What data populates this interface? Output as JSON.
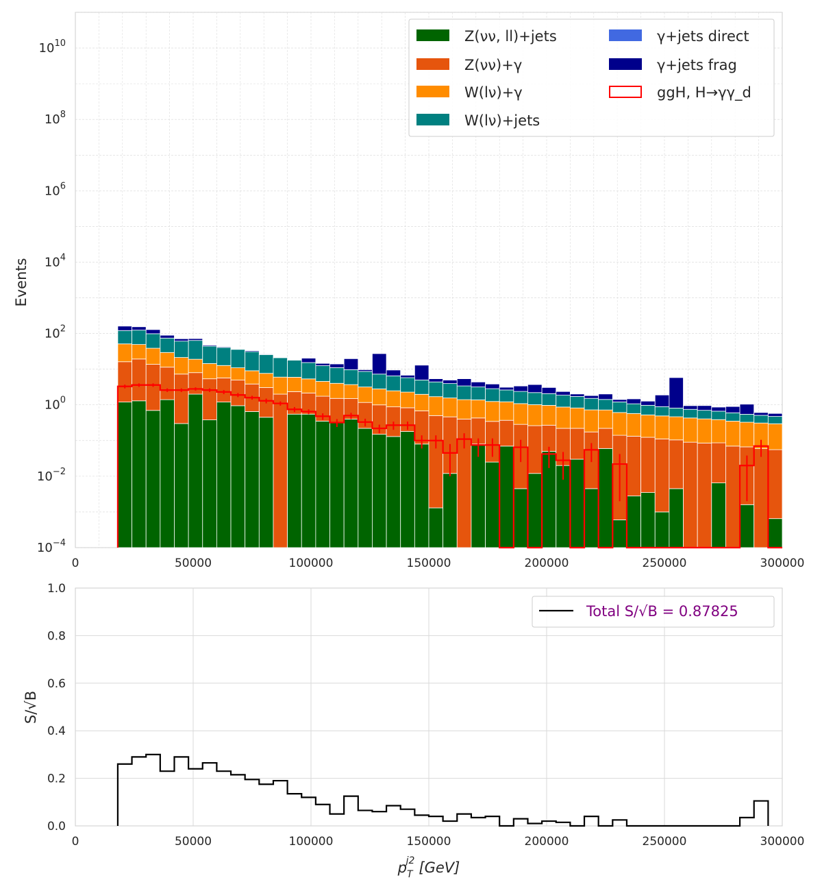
{
  "colors": {
    "z_jets": "#006400",
    "z_gamma": "#E6550D",
    "w_gamma": "#FF8C00",
    "w_jets": "#008080",
    "gj_direct": "#4169E1",
    "gj_frag": "#00008B",
    "signal": "#FF0000",
    "ratio": "#000000",
    "legend_text_ratio": "#800080"
  },
  "chart_data": [
    {
      "type": "bar",
      "stacked": true,
      "log_y": true,
      "ylabel": "Events",
      "xlim": [
        0,
        300000
      ],
      "ylim": [
        0.0001,
        100000000000
      ],
      "x_ticks": [
        "0",
        "50000",
        "100000",
        "150000",
        "200000",
        "250000",
        "300000"
      ],
      "y_ticks": [
        "10^-4",
        "10^-2",
        "10^0",
        "10^2",
        "10^4",
        "10^6",
        "10^8",
        "10^10"
      ],
      "grid": true,
      "legend_position": "top-right",
      "bin_edges": [
        18000,
        24000,
        30000,
        36000,
        42000,
        48000,
        54000,
        60000,
        66000,
        72000,
        78000,
        84000,
        90000,
        96000,
        102000,
        108000,
        114000,
        120000,
        126000,
        132000,
        138000,
        144000,
        150000,
        156000,
        162000,
        168000,
        174000,
        180000,
        186000,
        192000,
        198000,
        204000,
        210000,
        216000,
        222000,
        228000,
        234000,
        240000,
        246000,
        252000,
        258000,
        264000,
        270000,
        276000,
        282000,
        288000,
        294000,
        300000
      ],
      "series": [
        {
          "name": "Z(νν, ll)+jets",
          "key": "z_jets",
          "values": [
            1.2,
            1.3,
            0.7,
            1.4,
            0.3,
            2.0,
            0.38,
            1.2,
            0.95,
            0.65,
            0.45,
            0.0001,
            0.55,
            0.55,
            0.35,
            0.32,
            0.4,
            0.22,
            0.15,
            0.13,
            0.18,
            0.08,
            0.0013,
            0.012,
            0.0001,
            0.08,
            0.025,
            0.07,
            0.0045,
            0.012,
            0.05,
            0.02,
            0.03,
            0.0045,
            0.06,
            0.0006,
            0.0028,
            0.0035,
            0.001,
            0.0045,
            0.0001,
            0.0001,
            0.0065,
            0.0001,
            0.0016,
            0.0001,
            0.00065
          ]
        },
        {
          "name": "Z(νν)+γ",
          "key": "z_gamma",
          "values": [
            15,
            18,
            13,
            10,
            7,
            6,
            5,
            4.5,
            4,
            3.2,
            2.6,
            2,
            1.8,
            1.6,
            1.4,
            1.2,
            1.1,
            0.95,
            0.85,
            0.75,
            0.65,
            0.6,
            0.5,
            0.45,
            0.4,
            0.35,
            0.32,
            0.3,
            0.28,
            0.25,
            0.22,
            0.2,
            0.19,
            0.17,
            0.16,
            0.14,
            0.13,
            0.12,
            0.11,
            0.1,
            0.09,
            0.085,
            0.08,
            0.07,
            0.065,
            0.06,
            0.055
          ]
        },
        {
          "name": "W(lν)+γ",
          "key": "w_gamma",
          "values": [
            35,
            30,
            25,
            18,
            14,
            11,
            9,
            7,
            6,
            5.2,
            4.6,
            4,
            3.6,
            3.2,
            2.8,
            2.5,
            2.2,
            2,
            1.8,
            1.6,
            1.45,
            1.3,
            1.2,
            1.1,
            1,
            0.95,
            0.9,
            0.85,
            0.8,
            0.75,
            0.7,
            0.65,
            0.6,
            0.55,
            0.5,
            0.47,
            0.44,
            0.4,
            0.38,
            0.36,
            0.34,
            0.32,
            0.3,
            0.28,
            0.26,
            0.25,
            0.24
          ]
        },
        {
          "name": "W(lν)+jets",
          "key": "w_jets",
          "values": [
            70,
            75,
            60,
            45,
            40,
            45,
            30,
            28,
            25,
            22,
            18,
            15,
            12,
            10,
            8,
            7,
            6,
            5.5,
            4.5,
            4,
            3.5,
            3,
            2.7,
            2.4,
            2,
            1.8,
            1.6,
            1.4,
            1.3,
            1.2,
            1.1,
            1,
            0.9,
            0.8,
            0.7,
            0.6,
            0.5,
            0.45,
            0.4,
            0.35,
            0.32,
            0.3,
            0.28,
            0.25,
            0.22,
            0.2,
            0.18
          ]
        },
        {
          "name": "γ+jets direct",
          "key": "gj_direct",
          "values": [
            0,
            0,
            0,
            0,
            0,
            0,
            0,
            0,
            0,
            0,
            0,
            0,
            0,
            0,
            0,
            0,
            0,
            0,
            0,
            0,
            0,
            0,
            0,
            0,
            0,
            0,
            0,
            0,
            0,
            0,
            0,
            0,
            0,
            0,
            0,
            0,
            0,
            0,
            0,
            0,
            0,
            0,
            0,
            0,
            0,
            0,
            0
          ]
        },
        {
          "name": "γ+jets frag",
          "key": "gj_frag",
          "values": [
            40,
            30,
            30,
            15,
            10,
            8,
            3,
            2,
            1,
            2,
            1,
            0.5,
            0.5,
            5,
            2,
            3,
            10,
            1,
            20,
            3,
            1,
            8,
            1,
            1,
            2,
            1.2,
            1,
            0.5,
            1,
            1.5,
            1,
            0.5,
            0.3,
            0.3,
            0.6,
            0.2,
            0.4,
            0.3,
            1,
            5,
            0.2,
            0.25,
            0.2,
            0.3,
            0.5,
            0.1,
            0.1
          ]
        }
      ],
      "signal": {
        "name": "ggH, H→γγ_d",
        "key": "signal",
        "values": [
          3.3,
          3.6,
          3.6,
          2.6,
          2.6,
          2.8,
          2.6,
          2.3,
          1.9,
          1.6,
          1.3,
          1.1,
          0.75,
          0.65,
          0.48,
          0.32,
          0.5,
          0.33,
          0.22,
          0.27,
          0.27,
          0.1,
          0.1,
          0.045,
          0.11,
          0.075,
          0.075,
          0.0001,
          0.065,
          0.0001,
          0.042,
          0.028,
          0.0001,
          0.055,
          0.0001,
          0.022,
          0.0001,
          0.0001,
          0.0001,
          0.0001,
          0.0001,
          0.0001,
          0.0001,
          0.0001,
          0.02,
          0.07,
          0.0001
        ],
        "errors": [
          0.4,
          0.4,
          0.4,
          0.3,
          0.3,
          0.3,
          0.3,
          0.3,
          0.25,
          0.2,
          0.2,
          0.15,
          0.12,
          0.1,
          0.1,
          0.08,
          0.1,
          0.08,
          0.06,
          0.07,
          0.07,
          0.04,
          0.04,
          0.035,
          0.05,
          0.04,
          0.04,
          0,
          0.04,
          0,
          0.025,
          0.02,
          0,
          0.03,
          0,
          0.02,
          0,
          0,
          0,
          0,
          0,
          0,
          0,
          0,
          0.018,
          0.035,
          0
        ]
      }
    },
    {
      "type": "line",
      "step": true,
      "ylabel": "S/√B",
      "xlabel_main": "p",
      "xlabel_sub": "T",
      "xlabel_sup": "j2",
      "xlabel_unit": "[GeV]",
      "xlim": [
        0,
        300000
      ],
      "ylim": [
        0,
        1.0
      ],
      "x_ticks": [
        "0",
        "50000",
        "100000",
        "150000",
        "200000",
        "250000",
        "300000"
      ],
      "y_ticks": [
        "0.0",
        "0.2",
        "0.4",
        "0.6",
        "0.8",
        "1.0"
      ],
      "grid": true,
      "legend_position": "top-right",
      "legend_label": "Total S/√B = 0.87825",
      "bin_edges": [
        18000,
        24000,
        30000,
        36000,
        42000,
        48000,
        54000,
        60000,
        66000,
        72000,
        78000,
        84000,
        90000,
        96000,
        102000,
        108000,
        114000,
        120000,
        126000,
        132000,
        138000,
        144000,
        150000,
        156000,
        162000,
        168000,
        174000,
        180000,
        186000,
        192000,
        198000,
        204000,
        210000,
        216000,
        222000,
        228000,
        234000,
        240000,
        246000,
        252000,
        258000,
        264000,
        270000,
        276000,
        282000,
        288000,
        294000
      ],
      "values": [
        0.26,
        0.29,
        0.3,
        0.23,
        0.29,
        0.24,
        0.265,
        0.23,
        0.215,
        0.195,
        0.175,
        0.19,
        0.135,
        0.12,
        0.09,
        0.05,
        0.125,
        0.065,
        0.06,
        0.085,
        0.07,
        0.045,
        0.04,
        0.02,
        0.05,
        0.035,
        0.04,
        0.0,
        0.03,
        0.01,
        0.02,
        0.015,
        0.0,
        0.04,
        0.0,
        0.025,
        0.0,
        0.0,
        0.0,
        0.0,
        0.0,
        0.0,
        0.0,
        0.0,
        0.035,
        0.105
      ]
    }
  ]
}
